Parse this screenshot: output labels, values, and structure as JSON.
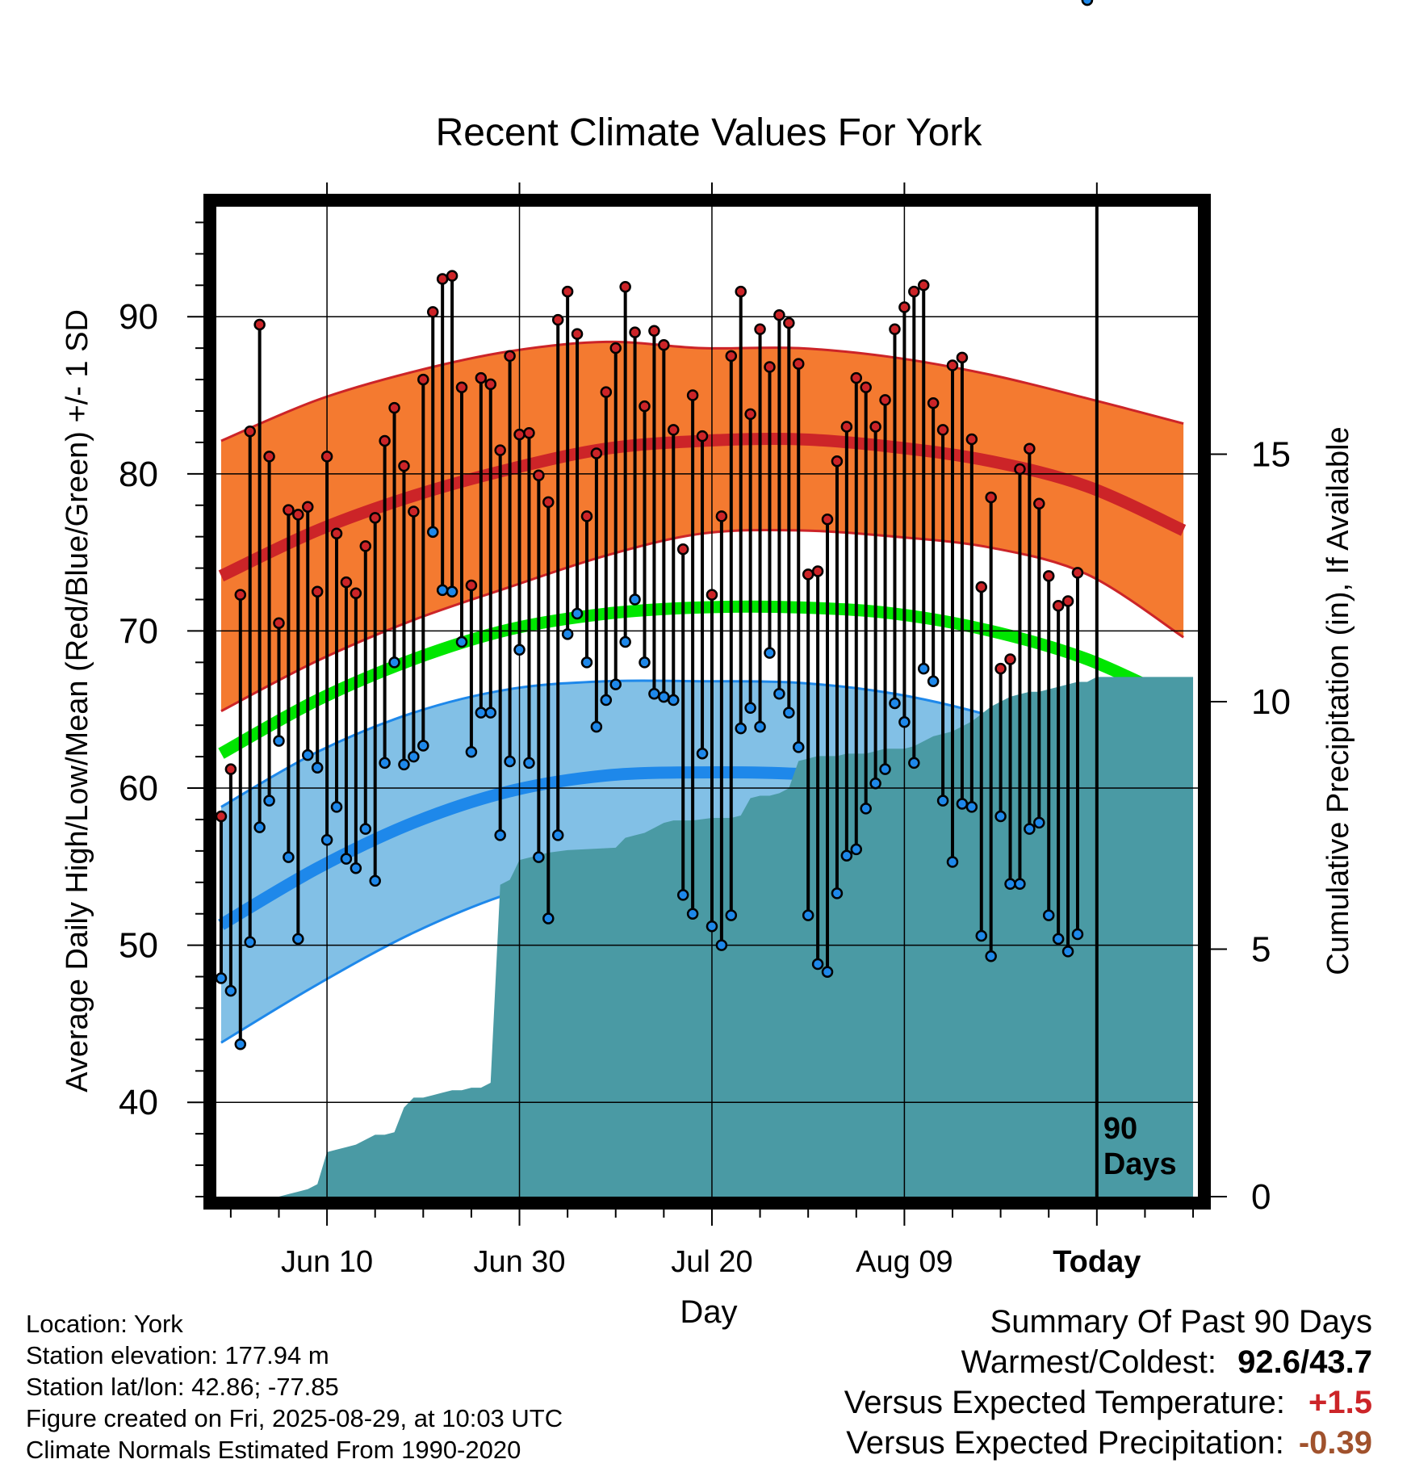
{
  "colors": {
    "high_band": "#f47a30",
    "high_line": "#cc2428",
    "low_band": "#82c0e6",
    "low_line": "#1e88ea",
    "mean_line": "#00e600",
    "precip_fill": "#4a9aa4",
    "high_dot": "#cc2428",
    "low_dot": "#1e88ea",
    "temp_delta": "#cc2428",
    "precip_delta": "#a0522d"
  },
  "chart_data": {
    "type": "line",
    "title": "Recent Climate Values For York",
    "xlabel": "Day",
    "ylabel_left": "Average Daily High/Low/Mean (Red/Blue/Green) +/- 1 SD",
    "ylabel_right": "Cumulative Precipitation (in), If Available",
    "x_ticks": [
      "Jun 10",
      "Jun 30",
      "Jul 20",
      "Aug 09",
      "Today"
    ],
    "x_tick_days": [
      10,
      30,
      50,
      70,
      90
    ],
    "xlim": [
      -1.5,
      100.5
    ],
    "ylim_left": [
      34,
      97
    ],
    "y_ticks_left": [
      40,
      50,
      60,
      70,
      80,
      90
    ],
    "ylim_right": [
      0,
      20
    ],
    "y_ticks_right": [
      0,
      5,
      10,
      15
    ],
    "today_label": [
      "90",
      "Days"
    ],
    "days": [
      -1,
      0,
      1,
      2,
      3,
      4,
      5,
      6,
      7,
      8,
      9,
      10,
      11,
      12,
      13,
      14,
      15,
      16,
      17,
      18,
      19,
      20,
      21,
      22,
      23,
      24,
      25,
      26,
      27,
      28,
      29,
      30,
      31,
      32,
      33,
      34,
      35,
      36,
      37,
      38,
      39,
      40,
      41,
      42,
      43,
      44,
      45,
      46,
      47,
      48,
      49,
      50,
      51,
      52,
      53,
      54,
      55,
      56,
      57,
      58,
      59,
      60,
      61,
      62,
      63,
      64,
      65,
      66,
      67,
      68,
      69,
      70,
      71,
      72,
      73,
      74,
      75,
      76,
      77,
      78,
      79,
      80,
      81,
      82,
      83,
      84,
      85,
      86,
      87,
      88,
      89
    ],
    "daily_high": [
      58.2,
      61.2,
      72.3,
      82.7,
      89.5,
      81.1,
      70.5,
      77.7,
      77.4,
      77.9,
      72.5,
      81.1,
      76.2,
      73.1,
      72.4,
      75.4,
      77.2,
      82.1,
      84.2,
      80.5,
      77.6,
      86.0,
      90.3,
      92.4,
      92.6,
      85.5,
      72.9,
      86.1,
      85.7,
      81.5,
      87.5,
      82.5,
      82.6,
      79.9,
      78.2,
      89.8,
      91.6,
      88.9,
      77.3,
      81.3,
      85.2,
      88.0,
      91.9,
      89.0,
      84.3,
      89.1,
      88.2,
      82.8,
      75.2,
      85.0,
      82.4,
      72.3,
      77.3,
      87.5,
      91.6,
      83.8,
      89.2,
      86.8,
      90.1,
      89.6,
      87.0,
      73.6,
      73.8,
      77.1,
      80.8,
      83.0,
      86.1,
      85.5,
      83.0,
      84.7,
      89.2,
      90.6,
      91.6,
      92.0,
      84.5,
      82.8,
      86.9,
      87.4,
      82.2,
      72.8,
      78.5,
      67.6,
      68.2,
      80.3,
      81.6,
      78.1,
      73.5,
      71.6,
      71.9,
      73.7
    ],
    "daily_low": [
      47.9,
      47.1,
      43.7,
      50.2,
      57.5,
      59.2,
      63.0,
      55.6,
      50.4,
      62.1,
      61.3,
      56.7,
      58.8,
      55.5,
      54.9,
      57.4,
      54.1,
      61.6,
      68.0,
      61.5,
      62.0,
      62.7,
      76.3,
      72.6,
      72.5,
      69.3,
      62.3,
      64.8,
      64.8,
      57.0,
      61.7,
      68.8,
      61.6,
      55.6,
      51.7,
      57.0,
      69.8,
      71.1,
      68.0,
      63.9,
      65.6,
      66.6,
      69.3,
      72.0,
      68.0,
      66.0,
      65.8,
      65.6,
      53.2,
      52.0,
      62.2,
      51.2,
      50.0,
      51.9,
      63.8,
      65.1,
      63.9,
      68.6,
      66.0,
      64.8,
      62.6,
      51.9,
      48.8,
      48.3,
      53.3,
      55.7,
      56.1,
      58.7,
      60.3,
      61.2,
      65.4,
      64.2,
      61.6,
      67.6,
      66.8,
      59.2,
      55.3,
      59.0,
      58.8,
      50.6,
      49.3,
      58.2,
      53.9,
      53.9,
      57.4,
      57.8,
      51.9,
      50.4,
      49.6,
      50.7
    ],
    "normal_high": [
      73.5,
      76.4,
      78.6,
      80.3,
      81.6,
      82.1,
      82.2,
      81.7,
      80.8,
      79.2,
      76.4
    ],
    "normal_high_sd": [
      8.6,
      8.3,
      7.9,
      7.5,
      6.8,
      5.9,
      5.8,
      5.7,
      5.5,
      5.6,
      6.8
    ],
    "normal_low": [
      51.3,
      54.9,
      57.8,
      59.8,
      60.8,
      61.0,
      60.9,
      60.4,
      59.3,
      57.2,
      54.5
    ],
    "normal_low_sd": [
      7.5,
      7.4,
      7.0,
      6.5,
      6.0,
      5.8,
      5.8,
      5.6,
      5.3,
      5.4,
      7.0
    ],
    "normal_mean": [
      62.2,
      65.6,
      68.2,
      70.1,
      71.1,
      71.5,
      71.5,
      71.1,
      70.0,
      68.2,
      65.4
    ],
    "normal_days": [
      -1,
      9,
      19,
      29,
      39,
      49,
      59,
      69,
      79,
      89,
      99
    ],
    "precip_days": [
      -1,
      5,
      6,
      7,
      8,
      9,
      10,
      11,
      12,
      13,
      14,
      15,
      16,
      17,
      18,
      19,
      20,
      21,
      22,
      23,
      24,
      25,
      26,
      27,
      28,
      29,
      30,
      31,
      33,
      35,
      40,
      41,
      42,
      43,
      44,
      45,
      46,
      47,
      48,
      50,
      52,
      53,
      54,
      55,
      56,
      57,
      58,
      59,
      60,
      61,
      62,
      63,
      64,
      65,
      66,
      67,
      68,
      69,
      70,
      71,
      72,
      73,
      74,
      75,
      76,
      77,
      78,
      79,
      80,
      81,
      82,
      83,
      84,
      85,
      86,
      87,
      88,
      89,
      90,
      100
    ],
    "cumulative_precip": [
      0,
      0,
      0.05,
      0.1,
      0.15,
      0.25,
      0.9,
      0.95,
      1.0,
      1.05,
      1.15,
      1.25,
      1.25,
      1.3,
      1.8,
      2.0,
      2.0,
      2.05,
      2.1,
      2.15,
      2.15,
      2.2,
      2.2,
      2.3,
      6.3,
      6.4,
      6.8,
      6.85,
      6.95,
      7.0,
      7.05,
      7.25,
      7.3,
      7.35,
      7.45,
      7.55,
      7.6,
      7.6,
      7.6,
      7.65,
      7.65,
      7.7,
      8.05,
      8.1,
      8.1,
      8.15,
      8.25,
      8.8,
      8.85,
      8.9,
      8.9,
      8.9,
      8.95,
      8.95,
      8.95,
      9.0,
      9.05,
      9.05,
      9.05,
      9.1,
      9.2,
      9.3,
      9.35,
      9.4,
      9.5,
      9.6,
      9.75,
      9.9,
      10.0,
      10.1,
      10.15,
      10.2,
      10.2,
      10.25,
      10.3,
      10.35,
      10.4,
      10.4,
      10.5,
      10.5
    ]
  },
  "footer": {
    "location": "Location: York",
    "elevation": "Station elevation: 177.94 m",
    "latlon": "Station lat/lon: 42.86; -77.85",
    "created": "Figure created on Fri, 2025-08-29, at 10:03 UTC",
    "normals": "Climate Normals Estimated From 1990-2020"
  },
  "summary": {
    "heading": "Summary Of Past 90 Days",
    "warmest_coldest_label": "Warmest/Coldest:",
    "warmest_coldest_value": "92.6/43.7",
    "temp_label": "Versus Expected Temperature:",
    "temp_value": "+1.5",
    "precip_label": "Versus Expected Precipitation:",
    "precip_value": "-0.39"
  }
}
